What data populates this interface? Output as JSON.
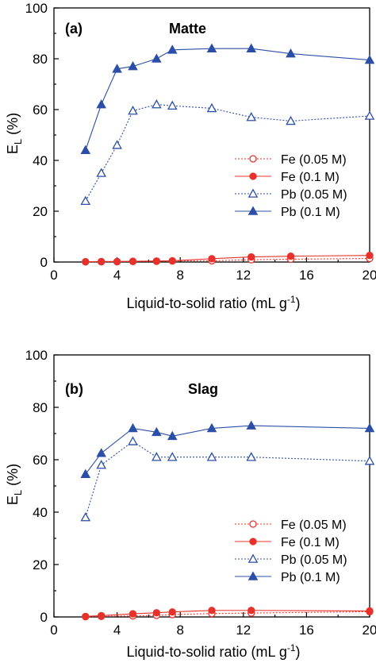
{
  "colors": {
    "red": "#e8312a",
    "blue": "#2b4fa6"
  },
  "chart_data": [
    {
      "type": "line",
      "panel_label": "(a)",
      "title": "Matte",
      "xlabel": "Liquid-to-solid ratio (mL g",
      "xlabel_sup": "-1",
      "xlabel_end": ")",
      "ylabel": "E",
      "ylabel_sub": "L",
      "ylabel_end": " (%)",
      "xlim": [
        0,
        20
      ],
      "ylim": [
        0,
        100
      ],
      "xticks": [
        0,
        4,
        8,
        12,
        16,
        20
      ],
      "yticks": [
        0,
        20,
        40,
        60,
        80,
        100
      ],
      "legend_position": "center-right",
      "series": [
        {
          "name": "Fe (0.05 M)",
          "color": "red",
          "marker": "circle-open",
          "line": "dotted",
          "x": [
            2,
            3,
            4,
            5,
            6.5,
            7.5,
            10,
            12.5,
            15,
            20
          ],
          "y": [
            0.1,
            0.1,
            0.1,
            0.2,
            0.3,
            0.4,
            0.5,
            0.9,
            1.1,
            1.4
          ]
        },
        {
          "name": "Fe (0.1 M)",
          "color": "red",
          "marker": "circle-filled",
          "line": "solid",
          "x": [
            2,
            3,
            4,
            5,
            6.5,
            7.5,
            10,
            12.5,
            15,
            20
          ],
          "y": [
            0.1,
            0.2,
            0.2,
            0.3,
            0.4,
            0.5,
            1.3,
            2.0,
            2.3,
            2.6
          ]
        },
        {
          "name": "Pb (0.05 M)",
          "color": "blue",
          "marker": "triangle-open",
          "line": "dotted",
          "x": [
            2,
            3,
            4,
            5,
            6.5,
            7.5,
            10,
            12.5,
            15,
            20
          ],
          "y": [
            24,
            35,
            46,
            59.5,
            62,
            61.5,
            60.5,
            57,
            55.5,
            57.5
          ]
        },
        {
          "name": "Pb (0.1 M)",
          "color": "blue",
          "marker": "triangle-filled",
          "line": "solid",
          "x": [
            2,
            3,
            4,
            5,
            6.5,
            7.5,
            10,
            12.5,
            15,
            20
          ],
          "y": [
            44,
            62,
            76,
            77,
            80,
            83.5,
            84,
            84,
            82,
            79.5
          ]
        }
      ]
    },
    {
      "type": "line",
      "panel_label": "(b)",
      "title": "Slag",
      "xlabel": "Liquid-to-solid ratio (mL g",
      "xlabel_sup": "-1",
      "xlabel_end": ")",
      "ylabel": "E",
      "ylabel_sub": "L",
      "ylabel_end": " (%)",
      "xlim": [
        0,
        20
      ],
      "ylim": [
        0,
        100
      ],
      "xticks": [
        0,
        4,
        8,
        12,
        16,
        20
      ],
      "yticks": [
        0,
        20,
        40,
        60,
        80,
        100
      ],
      "legend_position": "center-right",
      "series": [
        {
          "name": "Fe (0.05 M)",
          "color": "red",
          "marker": "circle-open",
          "line": "dotted",
          "x": [
            2,
            3,
            5,
            6.5,
            7.5,
            10,
            12.5,
            20
          ],
          "y": [
            0.1,
            0.2,
            0.4,
            0.6,
            0.9,
            1.3,
            1.5,
            2.0
          ]
        },
        {
          "name": "Fe (0.1 M)",
          "color": "red",
          "marker": "circle-filled",
          "line": "solid",
          "x": [
            2,
            3,
            5,
            6.5,
            7.5,
            10,
            12.5,
            20
          ],
          "y": [
            0.2,
            0.5,
            1.2,
            1.6,
            1.9,
            2.5,
            2.5,
            2.3
          ]
        },
        {
          "name": "Pb (0.05 M)",
          "color": "blue",
          "marker": "triangle-open",
          "line": "dotted",
          "x": [
            2,
            3,
            5,
            6.5,
            7.5,
            10,
            12.5,
            20
          ],
          "y": [
            38,
            58,
            67,
            61,
            61,
            61,
            61,
            59.5
          ]
        },
        {
          "name": "Pb (0.1 M)",
          "color": "blue",
          "marker": "triangle-filled",
          "line": "solid",
          "x": [
            2,
            3,
            5,
            6.5,
            7.5,
            10,
            12.5,
            20
          ],
          "y": [
            54.5,
            62.5,
            72,
            70.5,
            69,
            72,
            73,
            72
          ]
        }
      ]
    }
  ]
}
